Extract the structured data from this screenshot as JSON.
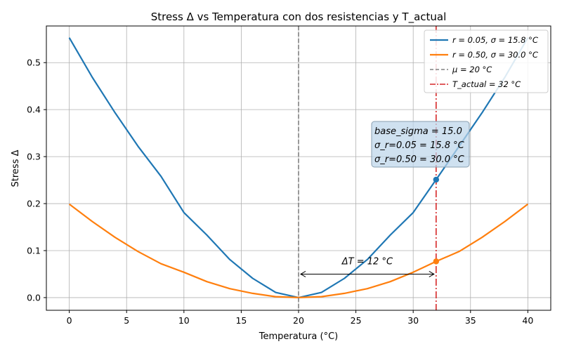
{
  "chart_data": {
    "type": "line",
    "title": "Stress Δ vs Temperatura con dos resistencias y T_actual",
    "xlabel": "Temperatura (°C)",
    "ylabel": "Stress Δ",
    "xlim": [
      -2,
      42
    ],
    "ylim": [
      -0.027,
      0.578
    ],
    "xticks": [
      0,
      5,
      10,
      15,
      20,
      25,
      30,
      35,
      40
    ],
    "yticks": [
      0.0,
      0.1,
      0.2,
      0.3,
      0.4,
      0.5
    ],
    "xtick_labels": [
      "0",
      "5",
      "10",
      "15",
      "20",
      "25",
      "30",
      "35",
      "40"
    ],
    "ytick_labels": [
      "0.0",
      "0.1",
      "0.2",
      "0.3",
      "0.4",
      "0.5"
    ],
    "grid": true,
    "legend_position": "top-right",
    "mu": 20,
    "t_actual": 32,
    "series": [
      {
        "name": "r = 0.05,  σ = 15.8 °C",
        "color": "#1f77b4",
        "x": [
          0,
          2,
          4,
          6,
          8,
          10,
          12,
          14,
          16,
          18,
          20,
          22,
          24,
          26,
          28,
          30,
          32,
          34,
          36,
          38,
          40
        ],
        "values": [
          0.553,
          0.469,
          0.393,
          0.322,
          0.258,
          0.181,
          0.133,
          0.081,
          0.041,
          0.011,
          0.0,
          0.011,
          0.041,
          0.081,
          0.133,
          0.181,
          0.251,
          0.322,
          0.393,
          0.469,
          0.553
        ]
      },
      {
        "name": "r = 0.50,  σ = 30.0 °C",
        "color": "#ff7f0e",
        "x": [
          0,
          2,
          4,
          6,
          8,
          10,
          12,
          14,
          16,
          18,
          20,
          22,
          24,
          26,
          28,
          30,
          32,
          34,
          36,
          38,
          40
        ],
        "values": [
          0.199,
          0.162,
          0.128,
          0.098,
          0.072,
          0.054,
          0.034,
          0.019,
          0.009,
          0.002,
          0.0,
          0.002,
          0.009,
          0.019,
          0.034,
          0.054,
          0.077,
          0.098,
          0.128,
          0.162,
          0.199
        ]
      }
    ],
    "markers": [
      {
        "series": 0,
        "x": 32,
        "y": 0.251
      },
      {
        "series": 1,
        "x": 32,
        "y": 0.077
      }
    ],
    "vlines": [
      {
        "name": "μ = 20 °C",
        "x": 20,
        "color": "#808080",
        "style": "dashed"
      },
      {
        "name": "T_actual = 32 °C",
        "x": 32,
        "color": "#d62728",
        "style": "dashdot"
      }
    ],
    "info_box": {
      "lines": [
        "base_sigma = 15.0",
        "σ_r=0.05 = 15.8 °C",
        "σ_r=0.50 = 30.0 °C"
      ]
    },
    "annotation": {
      "text": "ΔT = 12 °C",
      "x_start": 20,
      "x_end": 32,
      "y": 0.05
    }
  }
}
